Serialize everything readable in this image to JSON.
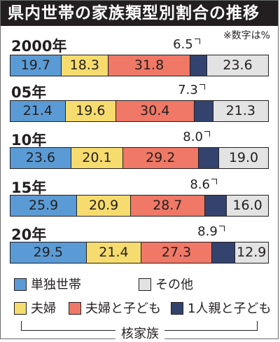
{
  "title": "県内世帯の家族類型別割合の推移",
  "unit_note": "※数字は%",
  "colors": {
    "tandoku": "#5b9bd5",
    "fuufu": "#f6dc6e",
    "fuufu_kodomo": "#ef7866",
    "hitorioya": "#34436e",
    "sonota": "#e3e3e3"
  },
  "chart_data": {
    "type": "bar",
    "stacked": "horizontal-100%",
    "categories": [
      "2000年",
      "05年",
      "10年",
      "15年",
      "20年"
    ],
    "series": [
      {
        "name": "単独世帯",
        "color_key": "tandoku",
        "values": [
          19.7,
          21.4,
          23.6,
          25.9,
          29.5
        ]
      },
      {
        "name": "夫婦",
        "color_key": "fuufu",
        "values": [
          18.3,
          19.6,
          20.1,
          20.9,
          21.4
        ]
      },
      {
        "name": "夫婦と子ども",
        "color_key": "fuufu_kodomo",
        "values": [
          31.8,
          30.4,
          29.2,
          28.7,
          27.3
        ]
      },
      {
        "name": "1人親と子ども",
        "color_key": "hitorioya",
        "values": [
          6.5,
          7.3,
          8.0,
          8.6,
          8.9
        ]
      },
      {
        "name": "その他",
        "color_key": "sonota",
        "values": [
          23.6,
          21.3,
          19.0,
          16.0,
          12.9
        ]
      }
    ],
    "value_labels": [
      [
        "19.7",
        "18.3",
        "31.8",
        "6.5",
        "23.6"
      ],
      [
        "21.4",
        "19.6",
        "30.4",
        "7.3",
        "21.3"
      ],
      [
        "23.6",
        "20.1",
        "29.2",
        "8.0",
        "19.0"
      ],
      [
        "25.9",
        "20.9",
        "28.7",
        "8.6",
        "16.0"
      ],
      [
        "29.5",
        "21.4",
        "27.3",
        "8.9",
        "12.9"
      ]
    ]
  },
  "legend": {
    "items": [
      {
        "label": "単独世帯",
        "color_key": "tandoku"
      },
      {
        "label": "その他",
        "color_key": "sonota"
      },
      {
        "label": "夫婦",
        "color_key": "fuufu"
      },
      {
        "label": "夫婦と子ども",
        "color_key": "fuufu_kodomo"
      },
      {
        "label": "1人親と子ども",
        "color_key": "hitorioya"
      }
    ],
    "group_label": "核家族"
  }
}
